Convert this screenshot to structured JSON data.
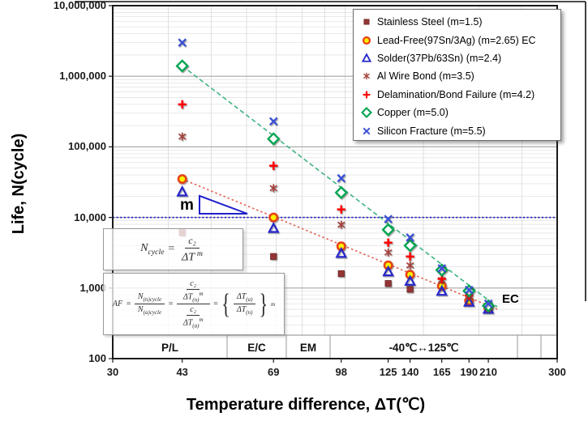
{
  "x_axis": {
    "title": "Temperature difference, ΔT(℃)",
    "ticks": [
      {
        "v": 30,
        "label": "30"
      },
      {
        "v": 43,
        "label": "43"
      },
      {
        "v": 69,
        "label": "69"
      },
      {
        "v": 98,
        "label": "98"
      },
      {
        "v": 125,
        "label": "125"
      },
      {
        "v": 140,
        "label": "140"
      },
      {
        "v": 165,
        "label": "165"
      },
      {
        "v": 190,
        "label": "190"
      },
      {
        "v": 210,
        "label": "210"
      },
      {
        "v": 300,
        "label": "300"
      }
    ]
  },
  "y_axis": {
    "title": "Life, N(cycle)",
    "ticks": [
      {
        "v": 100,
        "label": "100"
      },
      {
        "v": 1000,
        "label": "1,000"
      },
      {
        "v": 10000,
        "label": "10,000"
      },
      {
        "v": 100000,
        "label": "100,000"
      },
      {
        "v": 1000000,
        "label": "1,000,000"
      },
      {
        "v": 10000000,
        "label": "10,000,000"
      }
    ]
  },
  "legend": {
    "position": "top-right",
    "items": [
      {
        "label": "Stainless Steel (m=1.5)",
        "marker": "square",
        "color": "#943634",
        "fill": "#943634"
      },
      {
        "label": "Lead-Free(97Sn/3Ag) (m=2.65) EC",
        "marker": "circle",
        "color": "#E54213",
        "fill": "#FFF200"
      },
      {
        "label": "Solder(37Pb/63Sn) (m=2.4)",
        "marker": "triangle",
        "color": "#2526C9",
        "fill": "none"
      },
      {
        "label": "Al Wire Bond (m=3.5)",
        "marker": "asterisk",
        "color": "#A5423C",
        "fill": "none"
      },
      {
        "label": "Delamination/Bond Failure (m=4.2)",
        "marker": "plus",
        "color": "#FF0000",
        "fill": "none"
      },
      {
        "label": "Copper (m=5.0)",
        "marker": "diamond",
        "color": "#00A551",
        "fill": "#ffffff"
      },
      {
        "label": "Silicon Fracture (m=5.5)",
        "marker": "xmark",
        "color": "#3A4FD6",
        "fill": "none"
      }
    ]
  },
  "annotations": {
    "m_label": "m",
    "ec_label": "EC",
    "band_cells": [
      "P/L",
      "E/C",
      "EM",
      "-40℃↔125℃",
      "",
      ""
    ],
    "reference_line_value": "10,000 cycles (horizontal blue dotted line)"
  },
  "formulas": {
    "f1": {
      "N": "N",
      "N_sub": "cycle",
      "eq": "=",
      "num": "c₂",
      "den_base": "ΔT",
      "den_exp": "m"
    },
    "f2": {
      "AF": "AF",
      "eq": "=",
      "n_num": "N",
      "n_num_sub": "(n)cycle",
      "n_den": "N",
      "n_den_sub": "(a)cycle",
      "c": "c₂",
      "t": "ΔT",
      "sub_n": "(n)",
      "sub_a": "(a)",
      "exp": "m",
      "brace_l": "{",
      "brace_r": "}"
    }
  },
  "chart_data": {
    "type": "scatter",
    "x_scale": "log",
    "y_scale": "log",
    "xlim": [
      30,
      300
    ],
    "ylim": [
      100,
      10000000
    ],
    "xlabel": "Temperature difference, ΔT(℃)",
    "ylabel": "Life, N(cycle)",
    "grid": true,
    "legend_position": "top-right",
    "x": [
      43,
      69,
      98,
      125,
      140,
      165,
      190,
      210
    ],
    "series": [
      {
        "name": "Stainless Steel (m=1.5)",
        "m": 1.5,
        "marker": "square",
        "color": "#943634",
        "fill": "#943634",
        "values": [
          6100,
          2800,
          1600,
          1160,
          960,
          null,
          null,
          null
        ]
      },
      {
        "name": "Lead-Free(97Sn/3Ag) (m=2.65) EC",
        "m": 2.65,
        "marker": "circle",
        "color": "#E54213",
        "fill": "#FFF200",
        "values": [
          35000,
          10000,
          3900,
          2100,
          1550,
          1070,
          660,
          520
        ]
      },
      {
        "name": "Solder(37Pb/63Sn) (m=2.4)",
        "m": 2.4,
        "marker": "triangle",
        "color": "#2526C9",
        "fill": "none",
        "values": [
          23000,
          7000,
          3100,
          1700,
          1250,
          900,
          630,
          500
        ]
      },
      {
        "name": "Al Wire Bond (m=3.5)",
        "m": 3.5,
        "marker": "asterisk",
        "color": "#A5423C",
        "fill": "none",
        "values": [
          140000,
          26000,
          7900,
          3200,
          2100,
          1300,
          770,
          540
        ]
      },
      {
        "name": "Delamination/Bond Failure (m=4.2)",
        "m": 4.2,
        "marker": "plus",
        "color": "#FF0000",
        "fill": "none",
        "values": [
          400000,
          54000,
          13000,
          4400,
          2800,
          1350,
          780,
          560
        ]
      },
      {
        "name": "Copper (m=5.0)",
        "m": 5.0,
        "marker": "diamond",
        "color": "#00A551",
        "fill": "#ffffff",
        "values": [
          1400000,
          130000,
          22500,
          6700,
          4000,
          1800,
          910,
          560
        ]
      },
      {
        "name": "Silicon Fracture (m=5.5)",
        "m": 5.5,
        "marker": "xmark",
        "color": "#3A4FD6",
        "fill": "none",
        "values": [
          3000000,
          230000,
          36000,
          9500,
          5200,
          1900,
          940,
          600
        ]
      }
    ],
    "trend_lines": [
      {
        "name": "copper-trend",
        "style": "dashed",
        "color": "#3FB380",
        "from": [
          43,
          1400000
        ],
        "to": [
          220,
          540
        ]
      },
      {
        "name": "leadfree-trend",
        "style": "dotted",
        "color": "#E06050",
        "from": [
          43,
          35000
        ],
        "to": [
          220,
          500
        ]
      },
      {
        "name": "10k-reference",
        "style": "dotted",
        "color": "#2020CC",
        "horizontal_at": 10000
      }
    ]
  }
}
